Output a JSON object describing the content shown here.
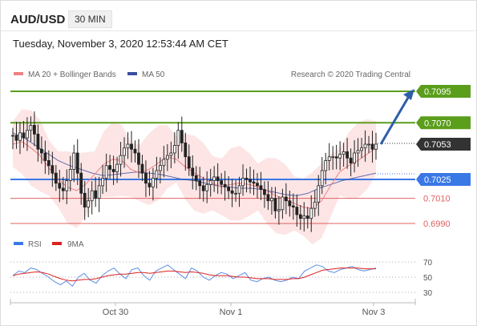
{
  "header": {
    "symbol": "AUD/USD",
    "timeframe": "30 MIN",
    "datetime": "Tuesday, November 3, 2020 12:53:44 AM CET"
  },
  "legend": {
    "ma20": "MA 20 + Bollinger Bands",
    "ma50": "MA 50",
    "credit": "Research © 2020 Trading Central"
  },
  "rsi_legend": {
    "rsi": "RSI",
    "ma": "9MA"
  },
  "colors": {
    "resistance": "#5a9e1c",
    "pivot": "#3a78e6",
    "support": "#e06060",
    "price_tag": "#333333",
    "arrow": "#2e5ea8",
    "ma20": "#f08080",
    "ma50": "#3a4fa0",
    "bands": "#fde0e0"
  },
  "chart_data": {
    "type": "line",
    "title": "AUD/USD 30 MIN",
    "x_ticks": [
      "Oct 30",
      "Nov 1",
      "Nov 3"
    ],
    "current_price": "0.7053",
    "levels": [
      {
        "value": 0.7095,
        "label": "0.7095",
        "type": "resistance"
      },
      {
        "value": 0.707,
        "label": "0.7070",
        "type": "resistance"
      },
      {
        "value": 0.7025,
        "label": "0.7025",
        "type": "pivot"
      },
      {
        "value": 0.701,
        "label": "0.7010",
        "type": "support"
      },
      {
        "value": 0.699,
        "label": "0.6990",
        "type": "support"
      }
    ],
    "price_series": [
      0.706,
      0.7056,
      0.7062,
      0.7058,
      0.7064,
      0.7068,
      0.7061,
      0.7049,
      0.7046,
      0.704,
      0.7036,
      0.703,
      0.7022,
      0.7018,
      0.7016,
      0.7024,
      0.7033,
      0.7046,
      0.703,
      0.7014,
      0.7003,
      0.7008,
      0.7016,
      0.701,
      0.702,
      0.7026,
      0.7036,
      0.7033,
      0.7031,
      0.7037,
      0.7044,
      0.705,
      0.7053,
      0.7049,
      0.7046,
      0.7037,
      0.703,
      0.7022,
      0.7019,
      0.7026,
      0.7032,
      0.7036,
      0.7041,
      0.7044,
      0.7046,
      0.7052,
      0.7064,
      0.7054,
      0.7043,
      0.7034,
      0.7028,
      0.7024,
      0.702,
      0.7016,
      0.7021,
      0.7024,
      0.7027,
      0.7024,
      0.7021,
      0.7019,
      0.7016,
      0.7014,
      0.7014,
      0.702,
      0.7026,
      0.7025,
      0.7023,
      0.7022,
      0.702,
      0.7017,
      0.7013,
      0.7008,
      0.701,
      0.7,
      0.7001,
      0.7011,
      0.7008,
      0.7004,
      0.7003,
      0.6997,
      0.6994,
      0.6996,
      0.6994,
      0.7002,
      0.7007,
      0.702,
      0.7032,
      0.704,
      0.7043,
      0.7043,
      0.7042,
      0.7045,
      0.7047,
      0.7042,
      0.7038,
      0.7046,
      0.7048,
      0.705,
      0.7053,
      0.7053,
      0.7049,
      0.7053
    ],
    "ma50_series": [
      0.7062,
      0.7058,
      0.7052,
      0.7046,
      0.704,
      0.7036,
      0.7033,
      0.703,
      0.7028,
      0.7029,
      0.703,
      0.7031,
      0.703,
      0.7029,
      0.7027,
      0.7025,
      0.7024,
      0.7022,
      0.702,
      0.7019,
      0.7018,
      0.7018,
      0.7017,
      0.7015,
      0.7013,
      0.7012,
      0.7014,
      0.7018,
      0.7021,
      0.7024,
      0.7026,
      0.7028,
      0.703
    ],
    "ma20_series": [
      0.7053,
      0.7055,
      0.705,
      0.7044,
      0.7034,
      0.7025,
      0.7019,
      0.7016,
      0.7021,
      0.7029,
      0.7037,
      0.7041,
      0.704,
      0.7033,
      0.703,
      0.7033,
      0.7038,
      0.7043,
      0.7041,
      0.7035,
      0.703,
      0.7026,
      0.7022,
      0.7019,
      0.7021,
      0.7022,
      0.7021,
      0.7019,
      0.7016,
      0.7012,
      0.7009,
      0.7006,
      0.7003,
      0.7002,
      0.7008,
      0.702,
      0.7031,
      0.7036,
      0.704,
      0.7045,
      0.705
    ],
    "rsi": {
      "ticks": [
        70,
        50,
        30
      ],
      "rsi_series": [
        52,
        58,
        56,
        62,
        60,
        55,
        50,
        44,
        40,
        45,
        38,
        50,
        55,
        46,
        42,
        52,
        58,
        62,
        54,
        48,
        60,
        62,
        52,
        46,
        58,
        62,
        66,
        60,
        54,
        48,
        62,
        58,
        50,
        46,
        52,
        56,
        54,
        48,
        52,
        56,
        46,
        44,
        48,
        50,
        46,
        44,
        46,
        50,
        48,
        58,
        62,
        66,
        64,
        58,
        56,
        60,
        62,
        64,
        60,
        58,
        60,
        62
      ],
      "ma_series": [
        52,
        54,
        55,
        56,
        57,
        56,
        54,
        51,
        48,
        46,
        45,
        46,
        47,
        47,
        48,
        50,
        52,
        53,
        54,
        54,
        55,
        56,
        56,
        55,
        56,
        57,
        58,
        58,
        57,
        56,
        57,
        56,
        55,
        53,
        52,
        52,
        52,
        51,
        50,
        50,
        49,
        48,
        48,
        48,
        47,
        47,
        47,
        48,
        48,
        50,
        53,
        56,
        59,
        60,
        61,
        62,
        62,
        62,
        62,
        61,
        61,
        61
      ]
    }
  }
}
